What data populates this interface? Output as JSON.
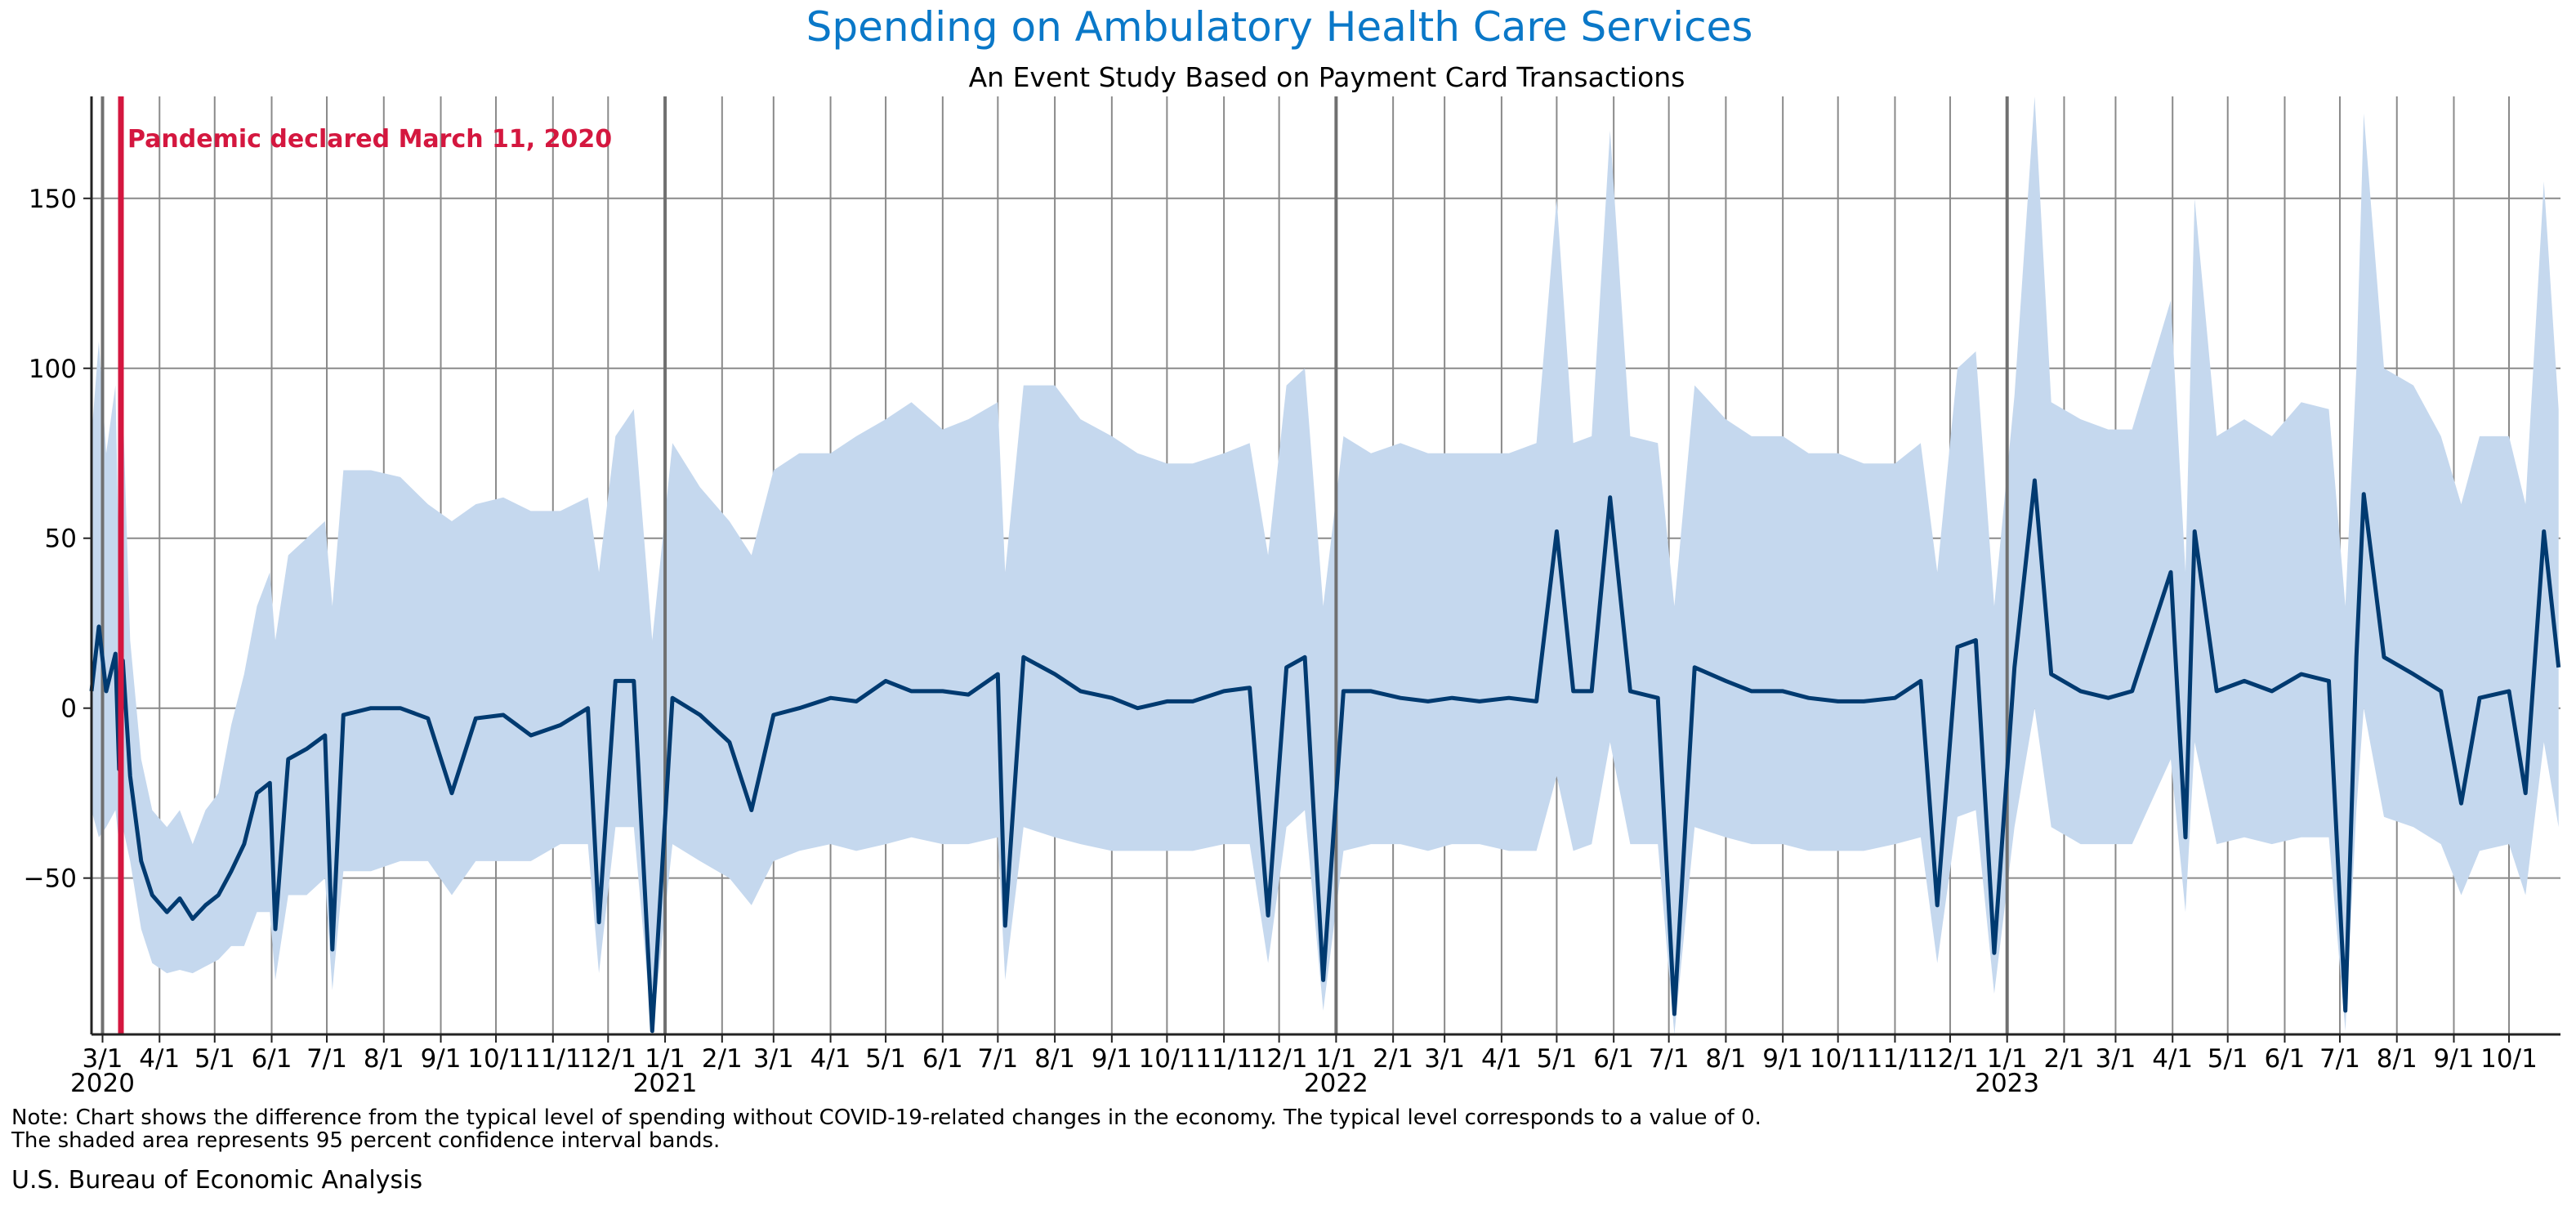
{
  "chart_data": {
    "type": "line",
    "title": "Spending on Ambulatory Health Care Services",
    "subtitle": "An Event Study Based on Payment Card Transactions",
    "xlabel": "",
    "ylabel": "",
    "ylim": [
      -96,
      180
    ],
    "xlim": [
      "2020-02-24",
      "2023-10-29"
    ],
    "grid": true,
    "legend": "none",
    "colors": {
      "title": "#0a78c8",
      "line": "#003a70",
      "band": "#c5d8ee",
      "event": "#d4173f",
      "grid": "#8a8a8a",
      "year_line": "#707070"
    },
    "y_ticks": [
      {
        "value": -50,
        "label": "−50"
      },
      {
        "value": 0,
        "label": "0"
      },
      {
        "value": 50,
        "label": "50"
      },
      {
        "value": 100,
        "label": "100"
      },
      {
        "value": 150,
        "label": "150"
      }
    ],
    "x_ticks": [
      {
        "date": "2020-03-01",
        "label": "3/1",
        "year": "2020"
      },
      {
        "date": "2020-04-01",
        "label": "4/1"
      },
      {
        "date": "2020-05-01",
        "label": "5/1"
      },
      {
        "date": "2020-06-01",
        "label": "6/1"
      },
      {
        "date": "2020-07-01",
        "label": "7/1"
      },
      {
        "date": "2020-08-01",
        "label": "8/1"
      },
      {
        "date": "2020-09-01",
        "label": "9/1"
      },
      {
        "date": "2020-10-01",
        "label": "10/1"
      },
      {
        "date": "2020-11-01",
        "label": "11/1"
      },
      {
        "date": "2020-12-01",
        "label": "12/1"
      },
      {
        "date": "2021-01-01",
        "label": "1/1",
        "year": "2021"
      },
      {
        "date": "2021-02-01",
        "label": "2/1"
      },
      {
        "date": "2021-03-01",
        "label": "3/1"
      },
      {
        "date": "2021-04-01",
        "label": "4/1"
      },
      {
        "date": "2021-05-01",
        "label": "5/1"
      },
      {
        "date": "2021-06-01",
        "label": "6/1"
      },
      {
        "date": "2021-07-01",
        "label": "7/1"
      },
      {
        "date": "2021-08-01",
        "label": "8/1"
      },
      {
        "date": "2021-09-01",
        "label": "9/1"
      },
      {
        "date": "2021-10-01",
        "label": "10/1"
      },
      {
        "date": "2021-11-01",
        "label": "11/1"
      },
      {
        "date": "2021-12-01",
        "label": "12/1"
      },
      {
        "date": "2022-01-01",
        "label": "1/1",
        "year": "2022"
      },
      {
        "date": "2022-02-01",
        "label": "2/1"
      },
      {
        "date": "2022-03-01",
        "label": "3/1"
      },
      {
        "date": "2022-04-01",
        "label": "4/1"
      },
      {
        "date": "2022-05-01",
        "label": "5/1"
      },
      {
        "date": "2022-06-01",
        "label": "6/1"
      },
      {
        "date": "2022-07-01",
        "label": "7/1"
      },
      {
        "date": "2022-08-01",
        "label": "8/1"
      },
      {
        "date": "2022-09-01",
        "label": "9/1"
      },
      {
        "date": "2022-10-01",
        "label": "10/1"
      },
      {
        "date": "2022-11-01",
        "label": "11/1"
      },
      {
        "date": "2022-12-01",
        "label": "12/1"
      },
      {
        "date": "2023-01-01",
        "label": "1/1",
        "year": "2023"
      },
      {
        "date": "2023-02-01",
        "label": "2/1"
      },
      {
        "date": "2023-03-01",
        "label": "3/1"
      },
      {
        "date": "2023-04-01",
        "label": "4/1"
      },
      {
        "date": "2023-05-01",
        "label": "5/1"
      },
      {
        "date": "2023-06-01",
        "label": "6/1"
      },
      {
        "date": "2023-07-01",
        "label": "7/1"
      },
      {
        "date": "2023-08-01",
        "label": "8/1"
      },
      {
        "date": "2023-09-01",
        "label": "9/1"
      },
      {
        "date": "2023-10-01",
        "label": "10/1"
      }
    ],
    "event": {
      "date": "2020-03-11",
      "label": "Pandemic declared March 11, 2020"
    },
    "series": [
      {
        "columns": [
          "date",
          "value",
          "ci_lower",
          "ci_upper"
        ],
        "points": [
          [
            "2020-02-24",
            5,
            -30,
            80
          ],
          [
            "2020-02-28",
            24,
            -38,
            108
          ],
          [
            "2020-03-03",
            5,
            -35,
            75
          ],
          [
            "2020-03-08",
            16,
            -30,
            95
          ],
          [
            "2020-03-10",
            -18,
            -40,
            40
          ],
          [
            "2020-03-12",
            14,
            -35,
            90
          ],
          [
            "2020-03-16",
            -20,
            -45,
            20
          ],
          [
            "2020-03-22",
            -45,
            -65,
            -15
          ],
          [
            "2020-03-28",
            -55,
            -75,
            -30
          ],
          [
            "2020-04-05",
            -60,
            -78,
            -35
          ],
          [
            "2020-04-12",
            -56,
            -77,
            -30
          ],
          [
            "2020-04-19",
            -62,
            -78,
            -40
          ],
          [
            "2020-04-26",
            -58,
            -76,
            -30
          ],
          [
            "2020-05-03",
            -55,
            -74,
            -25
          ],
          [
            "2020-05-10",
            -48,
            -70,
            -5
          ],
          [
            "2020-05-17",
            -40,
            -70,
            10
          ],
          [
            "2020-05-24",
            -25,
            -60,
            30
          ],
          [
            "2020-05-31",
            -22,
            -60,
            40
          ],
          [
            "2020-06-03",
            -65,
            -80,
            20
          ],
          [
            "2020-06-10",
            -15,
            -55,
            45
          ],
          [
            "2020-06-20",
            -12,
            -55,
            50
          ],
          [
            "2020-06-30",
            -8,
            -50,
            55
          ],
          [
            "2020-07-04",
            -71,
            -83,
            30
          ],
          [
            "2020-07-10",
            -2,
            -48,
            70
          ],
          [
            "2020-07-25",
            0,
            -48,
            70
          ],
          [
            "2020-08-10",
            0,
            -45,
            68
          ],
          [
            "2020-08-25",
            -3,
            -45,
            60
          ],
          [
            "2020-09-07",
            -25,
            -55,
            55
          ],
          [
            "2020-09-20",
            -3,
            -45,
            60
          ],
          [
            "2020-10-05",
            -2,
            -45,
            62
          ],
          [
            "2020-10-20",
            -8,
            -45,
            58
          ],
          [
            "2020-11-05",
            -5,
            -40,
            58
          ],
          [
            "2020-11-20",
            0,
            -40,
            62
          ],
          [
            "2020-11-26",
            -63,
            -78,
            40
          ],
          [
            "2020-12-05",
            8,
            -35,
            80
          ],
          [
            "2020-12-15",
            8,
            -35,
            88
          ],
          [
            "2020-12-25",
            -95,
            -96,
            20
          ],
          [
            "2021-01-05",
            3,
            -40,
            78
          ],
          [
            "2021-01-20",
            -2,
            -45,
            65
          ],
          [
            "2021-02-05",
            -10,
            -50,
            55
          ],
          [
            "2021-02-17",
            -30,
            -58,
            45
          ],
          [
            "2021-03-01",
            -2,
            -45,
            70
          ],
          [
            "2021-03-15",
            0,
            -42,
            75
          ],
          [
            "2021-04-01",
            3,
            -40,
            75
          ],
          [
            "2021-04-15",
            2,
            -42,
            80
          ],
          [
            "2021-05-01",
            8,
            -40,
            85
          ],
          [
            "2021-05-15",
            5,
            -38,
            90
          ],
          [
            "2021-06-01",
            5,
            -40,
            82
          ],
          [
            "2021-06-15",
            4,
            -40,
            85
          ],
          [
            "2021-07-01",
            10,
            -38,
            90
          ],
          [
            "2021-07-05",
            -64,
            -80,
            40
          ],
          [
            "2021-07-15",
            15,
            -35,
            95
          ],
          [
            "2021-08-01",
            10,
            -38,
            95
          ],
          [
            "2021-08-15",
            5,
            -40,
            85
          ],
          [
            "2021-09-01",
            3,
            -42,
            80
          ],
          [
            "2021-09-15",
            0,
            -42,
            75
          ],
          [
            "2021-10-01",
            2,
            -42,
            72
          ],
          [
            "2021-10-15",
            2,
            -42,
            72
          ],
          [
            "2021-11-01",
            5,
            -40,
            75
          ],
          [
            "2021-11-15",
            6,
            -40,
            78
          ],
          [
            "2021-11-25",
            -61,
            -75,
            45
          ],
          [
            "2021-12-05",
            12,
            -35,
            95
          ],
          [
            "2021-12-15",
            15,
            -30,
            100
          ],
          [
            "2021-12-25",
            -80,
            -89,
            30
          ],
          [
            "2022-01-05",
            5,
            -42,
            80
          ],
          [
            "2022-01-20",
            5,
            -40,
            75
          ],
          [
            "2022-02-05",
            3,
            -40,
            78
          ],
          [
            "2022-02-20",
            2,
            -42,
            75
          ],
          [
            "2022-03-05",
            3,
            -40,
            75
          ],
          [
            "2022-03-20",
            2,
            -40,
            75
          ],
          [
            "2022-04-05",
            3,
            -42,
            75
          ],
          [
            "2022-04-20",
            2,
            -42,
            78
          ],
          [
            "2022-05-01",
            52,
            -20,
            150
          ],
          [
            "2022-05-10",
            5,
            -42,
            78
          ],
          [
            "2022-05-20",
            5,
            -40,
            80
          ],
          [
            "2022-05-30",
            62,
            -10,
            170
          ],
          [
            "2022-06-10",
            5,
            -40,
            80
          ],
          [
            "2022-06-25",
            3,
            -40,
            78
          ],
          [
            "2022-07-04",
            -90,
            -96,
            30
          ],
          [
            "2022-07-15",
            12,
            -35,
            95
          ],
          [
            "2022-08-01",
            8,
            -38,
            85
          ],
          [
            "2022-08-15",
            5,
            -40,
            80
          ],
          [
            "2022-09-01",
            5,
            -40,
            80
          ],
          [
            "2022-09-15",
            3,
            -42,
            75
          ],
          [
            "2022-10-01",
            2,
            -42,
            75
          ],
          [
            "2022-10-15",
            2,
            -42,
            72
          ],
          [
            "2022-11-01",
            3,
            -40,
            72
          ],
          [
            "2022-11-15",
            8,
            -38,
            78
          ],
          [
            "2022-11-24",
            -58,
            -75,
            40
          ],
          [
            "2022-12-05",
            18,
            -32,
            100
          ],
          [
            "2022-12-15",
            20,
            -30,
            105
          ],
          [
            "2022-12-25",
            -72,
            -84,
            30
          ],
          [
            "2023-01-05",
            12,
            -35,
            92
          ],
          [
            "2023-01-16",
            67,
            0,
            180
          ],
          [
            "2023-01-25",
            10,
            -35,
            90
          ],
          [
            "2023-02-10",
            5,
            -40,
            85
          ],
          [
            "2023-02-25",
            3,
            -40,
            82
          ],
          [
            "2023-03-10",
            5,
            -40,
            82
          ],
          [
            "2023-03-31",
            40,
            -15,
            120
          ],
          [
            "2023-04-08",
            -38,
            -60,
            40
          ],
          [
            "2023-04-13",
            52,
            -10,
            150
          ],
          [
            "2023-04-25",
            5,
            -40,
            80
          ],
          [
            "2023-05-10",
            8,
            -38,
            85
          ],
          [
            "2023-05-25",
            5,
            -40,
            80
          ],
          [
            "2023-06-10",
            10,
            -38,
            90
          ],
          [
            "2023-06-25",
            8,
            -38,
            88
          ],
          [
            "2023-07-04",
            -89,
            -95,
            30
          ],
          [
            "2023-07-10",
            15,
            -30,
            100
          ],
          [
            "2023-07-14",
            63,
            0,
            175
          ],
          [
            "2023-07-25",
            15,
            -32,
            100
          ],
          [
            "2023-08-10",
            10,
            -35,
            95
          ],
          [
            "2023-08-25",
            5,
            -40,
            80
          ],
          [
            "2023-09-05",
            -28,
            -55,
            60
          ],
          [
            "2023-09-15",
            3,
            -42,
            80
          ],
          [
            "2023-10-01",
            5,
            -40,
            80
          ],
          [
            "2023-10-10",
            -25,
            -55,
            60
          ],
          [
            "2023-10-20",
            52,
            -10,
            155
          ],
          [
            "2023-10-28",
            12,
            -35,
            88
          ]
        ]
      }
    ]
  },
  "footer": {
    "note_line1": "Note: Chart shows the difference from the typical level of spending without COVID-19-related changes in the economy. The typical level corresponds to a value of 0.",
    "note_line2": "The shaded area represents 95 percent confidence interval bands.",
    "source": "U.S. Bureau of Economic Analysis"
  }
}
